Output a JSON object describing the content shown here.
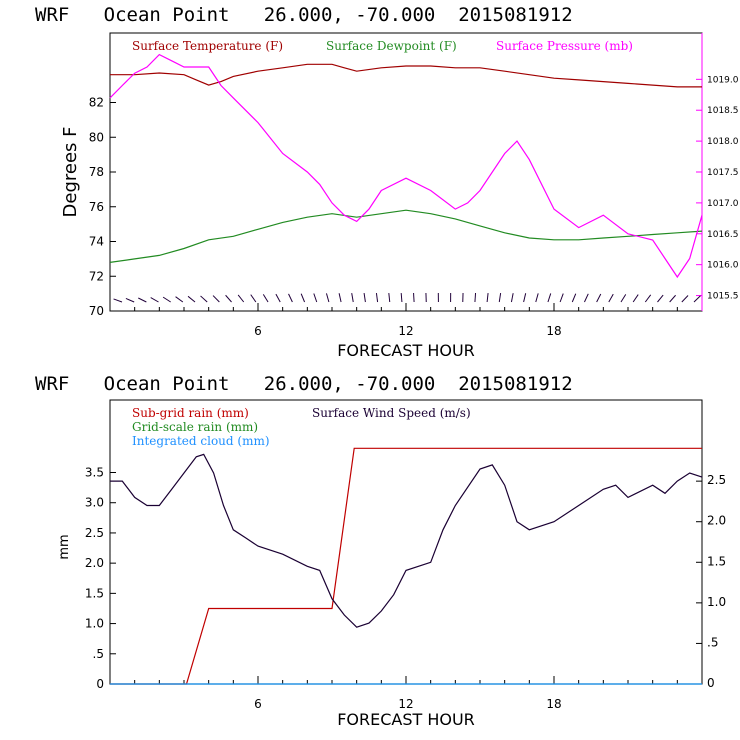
{
  "chart_data": [
    {
      "type": "line",
      "title": "WRF   Ocean Point   26.000, -70.000  2015081912",
      "xlabel": "FORECAST HOUR",
      "ylabel": "Degrees F",
      "y2label": "",
      "xlim": [
        0,
        24
      ],
      "ylim": [
        70,
        86
      ],
      "y2lim": [
        1015.25,
        1019.75
      ],
      "xticks": [
        6,
        12,
        18
      ],
      "xtick_labels": [
        "6",
        "12",
        "18"
      ],
      "yticks": [
        70,
        72,
        74,
        76,
        78,
        80,
        82
      ],
      "ytick_labels": [
        "70",
        "72",
        "74",
        "76",
        "78",
        "80",
        "82"
      ],
      "y2ticks": [
        1015.5,
        1016.0,
        1016.5,
        1017.0,
        1017.5,
        1018.0,
        1018.5,
        1019.0
      ],
      "y2tick_labels": [
        "1015.5",
        "1016.0",
        "1016.5",
        "1017.0",
        "1017.5",
        "1018.0",
        "1018.5",
        "1019.0"
      ],
      "legend": [
        "Surface Temperature (F)",
        "Surface Dewpoint (F)",
        "Surface Pressure (mb)"
      ],
      "series": [
        {
          "name": "Surface Temperature (F)",
          "axis": "left",
          "color": "#a00000",
          "x": [
            0,
            1,
            2,
            3,
            3.5,
            4,
            4.5,
            5,
            6,
            7,
            8,
            9,
            9.5,
            10,
            11,
            12,
            13,
            14,
            15,
            16,
            17,
            18,
            19,
            20,
            21,
            22,
            23,
            24
          ],
          "values": [
            83.6,
            83.6,
            83.7,
            83.6,
            83.3,
            83.0,
            83.2,
            83.5,
            83.8,
            84.0,
            84.2,
            84.2,
            84.0,
            83.8,
            84.0,
            84.1,
            84.1,
            84.0,
            84.0,
            83.8,
            83.6,
            83.4,
            83.3,
            83.2,
            83.1,
            83.0,
            82.9,
            82.9
          ]
        },
        {
          "name": "Surface Dewpoint (F)",
          "axis": "left",
          "color": "#228b22",
          "x": [
            0,
            1,
            2,
            3,
            4,
            5,
            6,
            7,
            8,
            9,
            10,
            11,
            12,
            13,
            14,
            15,
            16,
            17,
            18,
            19,
            20,
            21,
            22,
            23,
            24
          ],
          "values": [
            72.8,
            73.0,
            73.2,
            73.6,
            74.1,
            74.3,
            74.7,
            75.1,
            75.4,
            75.6,
            75.4,
            75.6,
            75.8,
            75.6,
            75.3,
            74.9,
            74.5,
            74.2,
            74.1,
            74.1,
            74.2,
            74.3,
            74.4,
            74.5,
            74.6
          ]
        },
        {
          "name": "Surface Pressure (mb)",
          "axis": "right",
          "color": "#ff00ff",
          "x": [
            0,
            0.5,
            1,
            1.5,
            2,
            2.5,
            3,
            3.5,
            4,
            4.5,
            5,
            6,
            7,
            8,
            8.5,
            9,
            9.5,
            10,
            10.5,
            11,
            12,
            13,
            14,
            14.5,
            15,
            16,
            16.5,
            17,
            18,
            19,
            20,
            21,
            22,
            22.5,
            23,
            23.5,
            24
          ],
          "values": [
            1018.7,
            1018.9,
            1019.1,
            1019.2,
            1019.4,
            1019.3,
            1019.2,
            1019.2,
            1019.2,
            1018.9,
            1018.7,
            1018.3,
            1017.8,
            1017.5,
            1017.3,
            1017.0,
            1016.8,
            1016.7,
            1016.9,
            1017.2,
            1017.4,
            1017.2,
            1016.9,
            1017.0,
            1017.2,
            1017.8,
            1018.0,
            1017.7,
            1016.9,
            1016.6,
            1016.8,
            1016.5,
            1016.4,
            1016.1,
            1015.8,
            1016.1,
            1016.8
          ]
        }
      ],
      "wind_barbs_row": "hourly wind barbs along the bottom of the panel"
    },
    {
      "type": "line",
      "title": "WRF   Ocean Point   26.000, -70.000  2015081912",
      "xlabel": "FORECAST HOUR",
      "ylabel": "mm",
      "xlim": [
        0,
        24
      ],
      "ylim": [
        0,
        4.7
      ],
      "y2lim": [
        0,
        3.5
      ],
      "xticks": [
        6,
        12,
        18
      ],
      "xtick_labels": [
        "6",
        "12",
        "18"
      ],
      "yticks": [
        0,
        0.5,
        1.0,
        1.5,
        2.0,
        2.5,
        3.0,
        3.5
      ],
      "ytick_labels": [
        "0",
        ".5",
        "1.0",
        "1.5",
        "2.0",
        "2.5",
        "3.0",
        "3.5"
      ],
      "y2ticks": [
        0,
        0.5,
        1.0,
        1.5,
        2.0,
        2.5
      ],
      "y2tick_labels": [
        "0",
        ".5",
        "1.0",
        "1.5",
        "2.0",
        "2.5"
      ],
      "legend": [
        "Sub-grid rain (mm)",
        "Grid-scale rain (mm)",
        "Integrated cloud (mm)",
        "Surface Wind Speed (m/s)"
      ],
      "series": [
        {
          "name": "Sub-grid rain (mm)",
          "axis": "left",
          "color": "#c00000",
          "x": [
            0,
            3.1,
            4.0,
            9.0,
            9.9,
            24
          ],
          "values": [
            0,
            0,
            1.25,
            1.25,
            3.9,
            3.9
          ]
        },
        {
          "name": "Grid-scale rain (mm)",
          "axis": "left",
          "color": "#228b22",
          "x": [
            0,
            24
          ],
          "values": [
            0,
            0
          ]
        },
        {
          "name": "Integrated cloud (mm)",
          "axis": "left",
          "color": "#1e90ff",
          "x": [
            0,
            24
          ],
          "values": [
            0,
            0
          ]
        },
        {
          "name": "Surface Wind Speed (m/s)",
          "axis": "right",
          "color": "#1a0033",
          "x": [
            0,
            0.5,
            1,
            1.5,
            2,
            2.5,
            3,
            3.5,
            3.8,
            4.2,
            4.6,
            5,
            5.5,
            6,
            7,
            8,
            8.5,
            9,
            9.5,
            10,
            10.5,
            11,
            11.5,
            12,
            13,
            13.5,
            14,
            15,
            15.5,
            16,
            16.5,
            17,
            18,
            19,
            20,
            20.5,
            21,
            22,
            22.5,
            23,
            23.5,
            24
          ],
          "values": [
            2.5,
            2.5,
            2.3,
            2.2,
            2.2,
            2.4,
            2.6,
            2.8,
            2.83,
            2.6,
            2.2,
            1.9,
            1.8,
            1.7,
            1.6,
            1.45,
            1.4,
            1.05,
            0.85,
            0.7,
            0.75,
            0.9,
            1.1,
            1.4,
            1.5,
            1.9,
            2.2,
            2.65,
            2.7,
            2.45,
            2.0,
            1.9,
            2.0,
            2.2,
            2.4,
            2.45,
            2.3,
            2.45,
            2.35,
            2.5,
            2.6,
            2.55
          ]
        }
      ]
    }
  ]
}
